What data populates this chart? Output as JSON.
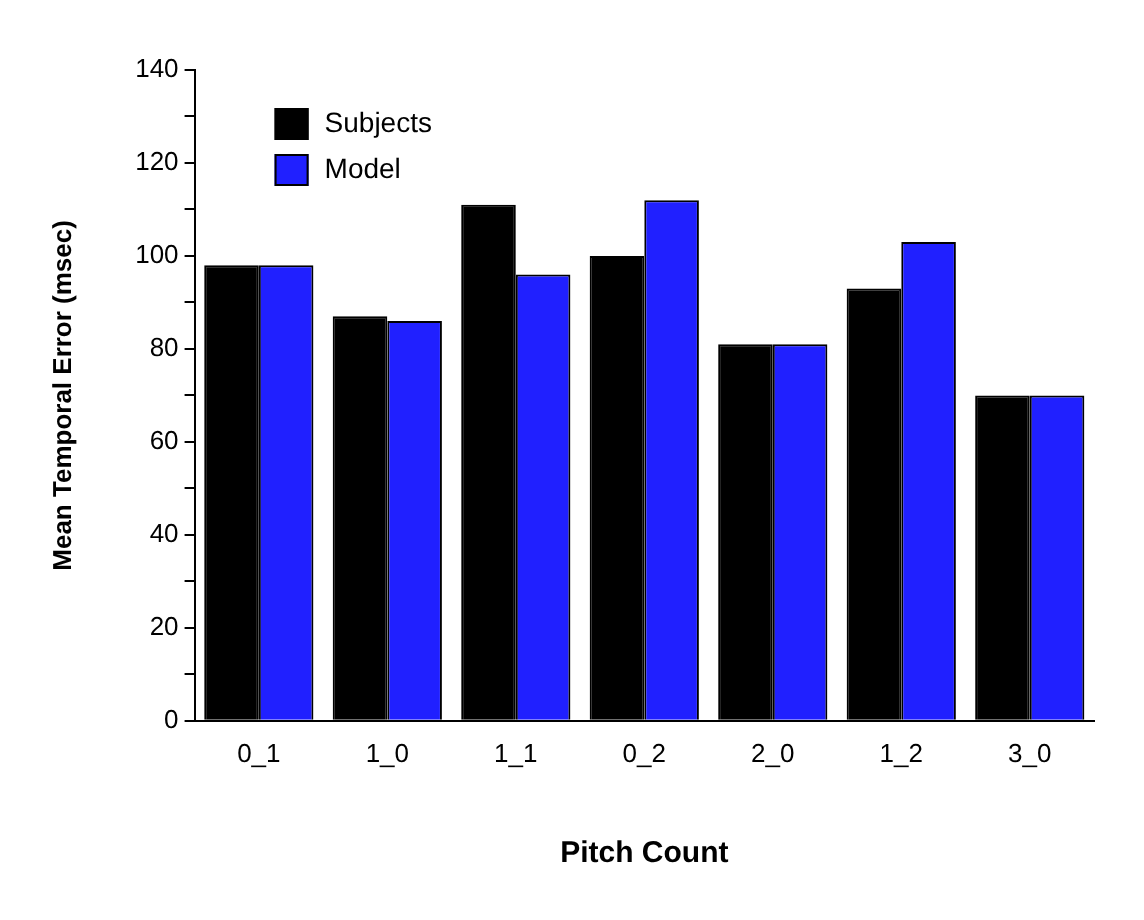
{
  "chart_data": {
    "type": "bar",
    "xlabel": "Pitch Count",
    "ylabel": "Mean Temporal Error (msec)",
    "categories": [
      "0_1",
      "1_0",
      "1_1",
      "0_2",
      "2_0",
      "1_2",
      "3_0"
    ],
    "series": [
      {
        "name": "Subjects",
        "color": "#000000",
        "values": [
          98,
          87,
          111,
          100,
          81,
          93,
          70
        ]
      },
      {
        "name": "Model",
        "color": "#2020ff",
        "values": [
          98,
          86,
          96,
          112,
          81,
          103,
          70
        ]
      }
    ],
    "ylim": [
      0,
      140
    ],
    "yticks": [
      0,
      {
        "value": 10,
        "label": null
      },
      20,
      {
        "value": 30,
        "label": null
      },
      40,
      {
        "value": 50,
        "label": null
      },
      60,
      {
        "value": 70,
        "label": null
      },
      80,
      {
        "value": 90,
        "label": null
      },
      100,
      {
        "value": 110,
        "label": null
      },
      120,
      {
        "value": 130,
        "label": null
      },
      140
    ],
    "grid": false,
    "legend": "top left"
  }
}
